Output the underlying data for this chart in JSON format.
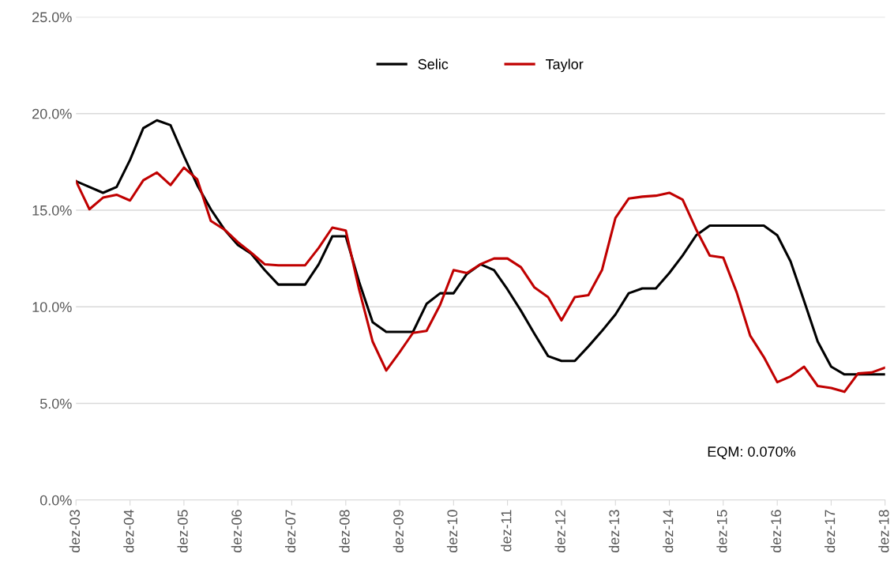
{
  "chart_data": {
    "type": "line",
    "x": [
      "2003-12",
      "2004-03",
      "2004-06",
      "2004-09",
      "2004-12",
      "2005-03",
      "2005-06",
      "2005-09",
      "2005-12",
      "2006-03",
      "2006-06",
      "2006-09",
      "2006-12",
      "2007-03",
      "2007-06",
      "2007-09",
      "2007-12",
      "2008-03",
      "2008-06",
      "2008-09",
      "2008-12",
      "2009-03",
      "2009-06",
      "2009-09",
      "2009-12",
      "2010-03",
      "2010-06",
      "2010-09",
      "2010-12",
      "2011-03",
      "2011-06",
      "2011-09",
      "2011-12",
      "2012-03",
      "2012-06",
      "2012-09",
      "2012-12",
      "2013-03",
      "2013-06",
      "2013-09",
      "2013-12",
      "2014-03",
      "2014-06",
      "2014-09",
      "2014-12",
      "2015-03",
      "2015-06",
      "2015-09",
      "2015-12",
      "2016-03",
      "2016-06",
      "2016-09",
      "2016-12",
      "2017-03",
      "2017-06",
      "2017-09",
      "2017-12",
      "2018-03",
      "2018-06",
      "2018-09",
      "2018-12"
    ],
    "series": [
      {
        "name": "Selic",
        "color": "#000000",
        "values": [
          16.5,
          16.2,
          15.9,
          16.2,
          17.6,
          19.25,
          19.65,
          19.4,
          17.8,
          16.3,
          15.05,
          14.0,
          13.2,
          12.75,
          11.9,
          11.15,
          11.15,
          11.15,
          12.2,
          13.65,
          13.65,
          11.3,
          9.2,
          8.7,
          8.7,
          8.7,
          10.15,
          10.7,
          10.7,
          11.7,
          12.2,
          11.9,
          10.9,
          9.8,
          8.6,
          7.45,
          7.2,
          7.2,
          7.95,
          8.75,
          9.6,
          10.7,
          10.95,
          10.95,
          11.75,
          12.65,
          13.7,
          14.2,
          14.2,
          14.2,
          14.2,
          14.2,
          13.7,
          12.35,
          10.3,
          8.2,
          6.9,
          6.5,
          6.5,
          6.5,
          6.5
        ]
      },
      {
        "name": "Taylor",
        "color": "#c00000",
        "values": [
          16.5,
          15.05,
          15.65,
          15.8,
          15.5,
          16.55,
          16.95,
          16.3,
          17.2,
          16.6,
          14.45,
          14.0,
          13.35,
          12.8,
          12.2,
          12.15,
          12.15,
          12.15,
          13.05,
          14.1,
          13.95,
          10.9,
          8.2,
          6.7,
          7.65,
          8.65,
          8.75,
          10.1,
          11.9,
          11.75,
          12.2,
          12.5,
          12.5,
          12.05,
          11.0,
          10.5,
          9.3,
          10.5,
          10.6,
          11.9,
          14.6,
          15.6,
          15.7,
          15.75,
          15.9,
          15.55,
          14.0,
          12.65,
          12.55,
          10.75,
          8.5,
          7.4,
          6.1,
          6.4,
          6.9,
          5.9,
          5.8,
          5.6,
          6.55,
          6.6,
          6.85
        ]
      }
    ],
    "xlim": [
      "2003-12",
      "2018-12"
    ],
    "xticks": [
      {
        "value": "2003-12",
        "label": "dez-03"
      },
      {
        "value": "2004-12",
        "label": "dez-04"
      },
      {
        "value": "2005-12",
        "label": "dez-05"
      },
      {
        "value": "2006-12",
        "label": "dez-06"
      },
      {
        "value": "2007-12",
        "label": "dez-07"
      },
      {
        "value": "2008-12",
        "label": "dez-08"
      },
      {
        "value": "2009-12",
        "label": "dez-09"
      },
      {
        "value": "2010-12",
        "label": "dez-10"
      },
      {
        "value": "2011-12",
        "label": "dez-11"
      },
      {
        "value": "2012-12",
        "label": "dez-12"
      },
      {
        "value": "2013-12",
        "label": "dez-13"
      },
      {
        "value": "2014-12",
        "label": "dez-14"
      },
      {
        "value": "2015-12",
        "label": "dez-15"
      },
      {
        "value": "2016-12",
        "label": "dez-16"
      },
      {
        "value": "2017-12",
        "label": "dez-17"
      },
      {
        "value": "2018-12",
        "label": "dez-18"
      }
    ],
    "ylim": [
      0,
      25
    ],
    "yticks": [
      {
        "value": 0,
        "label": "0.0%"
      },
      {
        "value": 5,
        "label": "5.0%"
      },
      {
        "value": 10,
        "label": "10.0%"
      },
      {
        "value": 15,
        "label": "15.0%"
      },
      {
        "value": 20,
        "label": "20.0%"
      },
      {
        "value": 25,
        "label": "25.0%"
      }
    ],
    "grid": "y",
    "legend": "top",
    "marker": "none",
    "line_style": "solid",
    "annotations": [
      "EQM: 0.070%"
    ]
  }
}
